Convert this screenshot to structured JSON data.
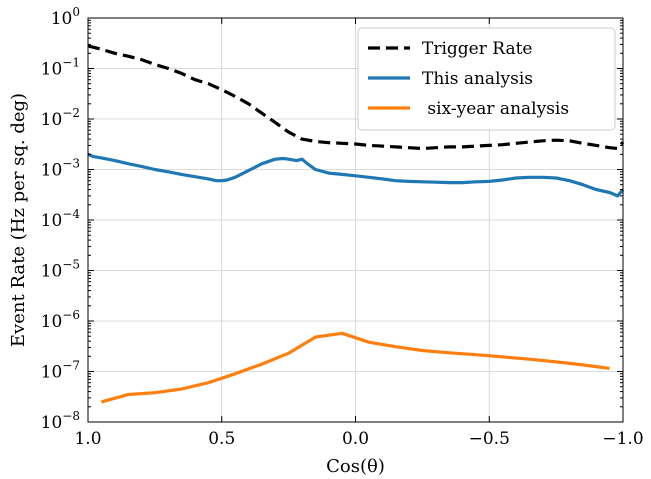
{
  "chart_data": {
    "type": "line",
    "xlabel": "Cos(θ)",
    "ylabel": "Event Rate (Hz per sq. deg)",
    "xlim": [
      1.0,
      -1.0
    ],
    "ylim": [
      1e-08,
      1
    ],
    "yscale": "log",
    "grid": true,
    "legend": "top-right",
    "x_ticks": [
      {
        "value": 1.0,
        "label": "1.0"
      },
      {
        "value": 0.5,
        "label": "0.5"
      },
      {
        "value": 0.0,
        "label": "0.0"
      },
      {
        "value": -0.5,
        "label": "−0.5"
      },
      {
        "value": -1.0,
        "label": "−1.0"
      }
    ],
    "y_ticks": [
      {
        "value": 1,
        "base": "10",
        "exp": "0"
      },
      {
        "value": 0.1,
        "base": "10",
        "exp": "−1"
      },
      {
        "value": 0.01,
        "base": "10",
        "exp": "−2"
      },
      {
        "value": 0.001,
        "base": "10",
        "exp": "−3"
      },
      {
        "value": 0.0001,
        "base": "10",
        "exp": "−4"
      },
      {
        "value": 1e-05,
        "base": "10",
        "exp": "−5"
      },
      {
        "value": 1e-06,
        "base": "10",
        "exp": "−6"
      },
      {
        "value": 1e-07,
        "base": "10",
        "exp": "−7"
      },
      {
        "value": 1e-08,
        "base": "10",
        "exp": "−8"
      }
    ],
    "series": [
      {
        "name": "Trigger Rate",
        "color": "#000000",
        "style": "dashed",
        "x": [
          1.0,
          0.95,
          0.9,
          0.85,
          0.8,
          0.75,
          0.7,
          0.65,
          0.6,
          0.55,
          0.5,
          0.45,
          0.4,
          0.35,
          0.3,
          0.25,
          0.2,
          0.15,
          0.1,
          0.05,
          0.0,
          -0.05,
          -0.1,
          -0.15,
          -0.2,
          -0.25,
          -0.3,
          -0.35,
          -0.4,
          -0.45,
          -0.5,
          -0.55,
          -0.6,
          -0.65,
          -0.7,
          -0.75,
          -0.8,
          -0.85,
          -0.9,
          -0.95,
          -0.98,
          -1.0
        ],
        "y": [
          0.28,
          0.24,
          0.2,
          0.175,
          0.15,
          0.12,
          0.1,
          0.08,
          0.06,
          0.05,
          0.038,
          0.028,
          0.02,
          0.013,
          0.0085,
          0.0055,
          0.004,
          0.0036,
          0.0034,
          0.0033,
          0.0032,
          0.003,
          0.0029,
          0.0028,
          0.0027,
          0.0026,
          0.0027,
          0.0028,
          0.0028,
          0.0029,
          0.003,
          0.0031,
          0.0033,
          0.0035,
          0.0037,
          0.0038,
          0.0037,
          0.0033,
          0.003,
          0.0027,
          0.0026,
          0.0035
        ]
      },
      {
        "name": "This analysis",
        "color": "#1f77b4",
        "style": "solid",
        "x": [
          1.0,
          0.98,
          0.95,
          0.9,
          0.85,
          0.8,
          0.75,
          0.7,
          0.65,
          0.6,
          0.55,
          0.52,
          0.5,
          0.48,
          0.45,
          0.4,
          0.35,
          0.3,
          0.27,
          0.25,
          0.22,
          0.2,
          0.18,
          0.15,
          0.1,
          0.05,
          0.0,
          -0.05,
          -0.1,
          -0.15,
          -0.2,
          -0.25,
          -0.3,
          -0.35,
          -0.4,
          -0.45,
          -0.5,
          -0.55,
          -0.6,
          -0.65,
          -0.7,
          -0.75,
          -0.8,
          -0.85,
          -0.9,
          -0.95,
          -0.98,
          -1.0
        ],
        "y": [
          0.002,
          0.0018,
          0.0017,
          0.0015,
          0.0013,
          0.00115,
          0.001,
          0.0009,
          0.0008,
          0.00072,
          0.00065,
          0.0006,
          0.0006,
          0.00062,
          0.0007,
          0.00095,
          0.0013,
          0.0016,
          0.00165,
          0.0016,
          0.0015,
          0.0016,
          0.0013,
          0.001,
          0.00085,
          0.0008,
          0.00075,
          0.0007,
          0.00065,
          0.0006,
          0.00058,
          0.00057,
          0.00056,
          0.00055,
          0.00055,
          0.00057,
          0.00058,
          0.00062,
          0.00068,
          0.0007,
          0.0007,
          0.00068,
          0.0006,
          0.0005,
          0.0004,
          0.00035,
          0.0003,
          0.0004
        ]
      },
      {
        "name": " six-year analysis",
        "color": "#ff7f0e",
        "style": "solid",
        "x": [
          0.95,
          0.85,
          0.75,
          0.65,
          0.55,
          0.45,
          0.35,
          0.25,
          0.15,
          0.05,
          -0.05,
          -0.15,
          -0.25,
          -0.35,
          -0.45,
          -0.55,
          -0.65,
          -0.75,
          -0.85,
          -0.95
        ],
        "y": [
          2.5e-08,
          3.5e-08,
          3.8e-08,
          4.5e-08,
          6e-08,
          9e-08,
          1.4e-07,
          2.3e-07,
          4.8e-07,
          5.7e-07,
          3.8e-07,
          3.1e-07,
          2.6e-07,
          2.35e-07,
          2.15e-07,
          1.95e-07,
          1.75e-07,
          1.55e-07,
          1.35e-07,
          1.15e-07
        ]
      }
    ]
  }
}
